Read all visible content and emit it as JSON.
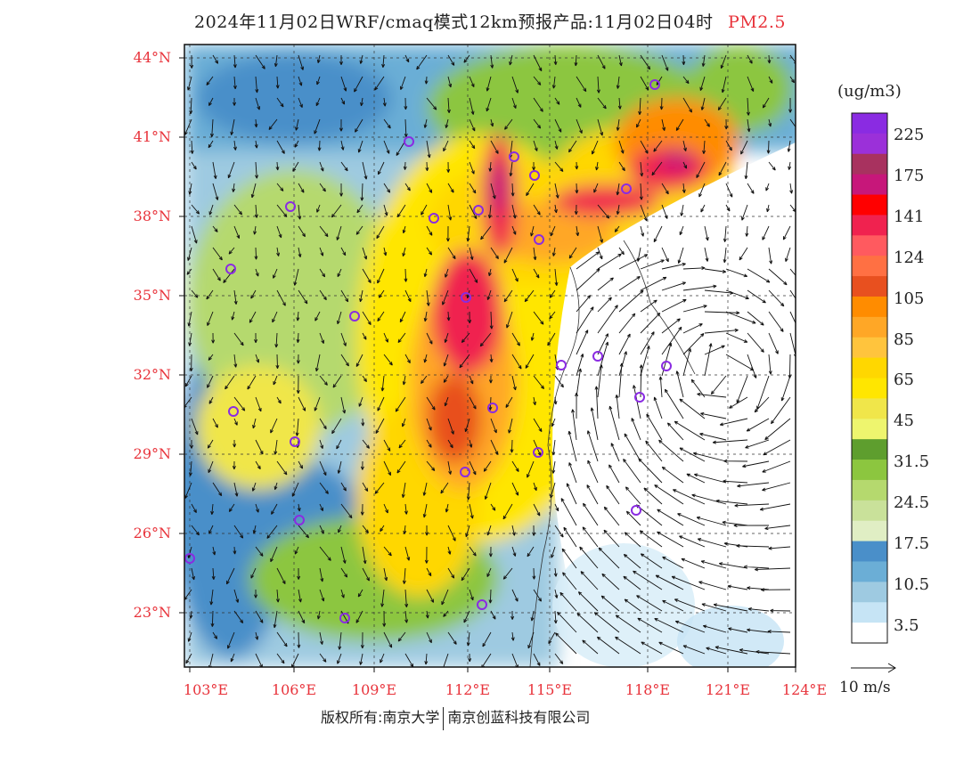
{
  "title": {
    "main": "2024年11月02日WRF/cmaq模式12km预报产品:11月02日04时",
    "pollutant": "PM2.5"
  },
  "axes": {
    "lat_labels": [
      "44°N",
      "41°N",
      "38°N",
      "35°N",
      "32°N",
      "29°N",
      "26°N",
      "23°N"
    ],
    "lon_labels": [
      "103°E",
      "106°E",
      "109°E",
      "112°E",
      "115°E",
      "118°E",
      "121°E",
      "124°E"
    ]
  },
  "colorbar": {
    "unit": "(ug/m3)",
    "labels": [
      "225",
      "175",
      "141",
      "124",
      "105",
      "85",
      "65",
      "45",
      "31.5",
      "24.5",
      "17.5",
      "10.5",
      "3.5"
    ],
    "colors": [
      "#8a2be2",
      "#9b30d9",
      "#a8325f",
      "#c7177a",
      "#ff0000",
      "#f0224f",
      "#ff5a5f",
      "#ff7043",
      "#e8501f",
      "#ff8c00",
      "#ffa726",
      "#ffc43d",
      "#ffd700",
      "#ffe600",
      "#f0e64a",
      "#eef56e",
      "#5e9e2e",
      "#8cc63f",
      "#b5d96e",
      "#c9e19a",
      "#e0eec4",
      "#4a8fc9",
      "#6baed6",
      "#9ecae1",
      "#c6e4f5",
      "#ffffff"
    ]
  },
  "wind_reference": {
    "label": "10 m/s"
  },
  "footer": {
    "left": "版权所有:南京大学",
    "right": "南京创蓝科技有限公司"
  }
}
